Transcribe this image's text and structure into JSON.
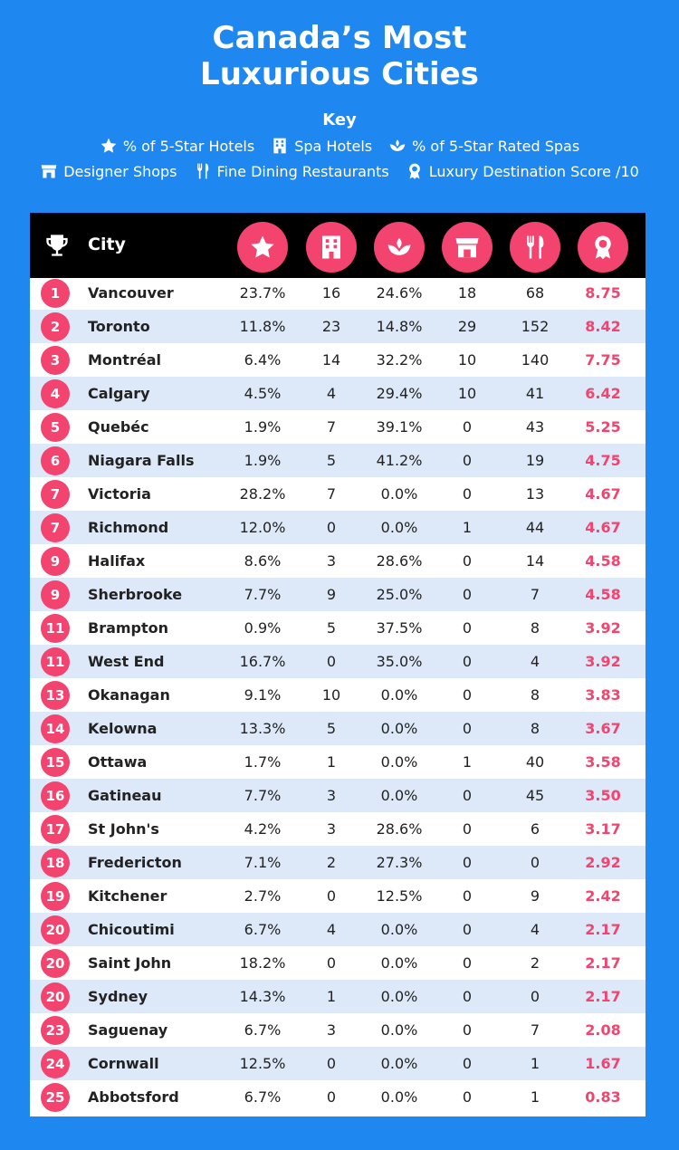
{
  "title_line1": "Canada’s Most",
  "title_line2": "Luxurious Cities",
  "key": {
    "title": "Key",
    "items": [
      {
        "icon": "star-icon",
        "label": "% of 5-Star Hotels"
      },
      {
        "icon": "building-icon",
        "label": "Spa Hotels"
      },
      {
        "icon": "lotus-icon",
        "label": "% of 5-Star Rated Spas"
      },
      {
        "icon": "shop-icon",
        "label": "Designer Shops"
      },
      {
        "icon": "cutlery-icon",
        "label": "Fine Dining Restaurants"
      },
      {
        "icon": "award-icon",
        "label": "Luxury Destination Score /10"
      }
    ]
  },
  "colors": {
    "background": "#1e88f0",
    "accent": "#f2446e",
    "alt_row": "#dde9f8",
    "header": "#000000"
  },
  "header": {
    "city": "City"
  },
  "chart_data": {
    "type": "table",
    "columns": [
      "Rank",
      "City",
      "% of 5-Star Hotels",
      "Spa Hotels",
      "% of 5-Star Rated Spas",
      "Designer Shops",
      "Fine Dining Restaurants",
      "Luxury Destination Score /10"
    ],
    "rows": [
      {
        "rank": "1",
        "city": "Vancouver",
        "hotels": "23.7%",
        "spa_hotels": "16",
        "spas": "24.6%",
        "shops": "18",
        "dining": "68",
        "score": "8.75"
      },
      {
        "rank": "2",
        "city": "Toronto",
        "hotels": "11.8%",
        "spa_hotels": "23",
        "spas": "14.8%",
        "shops": "29",
        "dining": "152",
        "score": "8.42"
      },
      {
        "rank": "3",
        "city": "Montréal",
        "hotels": "6.4%",
        "spa_hotels": "14",
        "spas": "32.2%",
        "shops": "10",
        "dining": "140",
        "score": "7.75"
      },
      {
        "rank": "4",
        "city": "Calgary",
        "hotels": "4.5%",
        "spa_hotels": "4",
        "spas": "29.4%",
        "shops": "10",
        "dining": "41",
        "score": "6.42"
      },
      {
        "rank": "5",
        "city": "Quebéc",
        "hotels": "1.9%",
        "spa_hotels": "7",
        "spas": "39.1%",
        "shops": "0",
        "dining": "43",
        "score": "5.25"
      },
      {
        "rank": "6",
        "city": "Niagara Falls",
        "hotels": "1.9%",
        "spa_hotels": "5",
        "spas": "41.2%",
        "shops": "0",
        "dining": "19",
        "score": "4.75"
      },
      {
        "rank": "7",
        "city": "Victoria",
        "hotels": "28.2%",
        "spa_hotels": "7",
        "spas": "0.0%",
        "shops": "0",
        "dining": "13",
        "score": "4.67"
      },
      {
        "rank": "7",
        "city": "Richmond",
        "hotels": "12.0%",
        "spa_hotels": "0",
        "spas": "0.0%",
        "shops": "1",
        "dining": "44",
        "score": "4.67"
      },
      {
        "rank": "9",
        "city": "Halifax",
        "hotels": "8.6%",
        "spa_hotels": "3",
        "spas": "28.6%",
        "shops": "0",
        "dining": "14",
        "score": "4.58"
      },
      {
        "rank": "9",
        "city": "Sherbrooke",
        "hotels": "7.7%",
        "spa_hotels": "9",
        "spas": "25.0%",
        "shops": "0",
        "dining": "7",
        "score": "4.58"
      },
      {
        "rank": "11",
        "city": "Brampton",
        "hotels": "0.9%",
        "spa_hotels": "5",
        "spas": "37.5%",
        "shops": "0",
        "dining": "8",
        "score": "3.92"
      },
      {
        "rank": "11",
        "city": "West End",
        "hotels": "16.7%",
        "spa_hotels": "0",
        "spas": "35.0%",
        "shops": "0",
        "dining": "4",
        "score": "3.92"
      },
      {
        "rank": "13",
        "city": "Okanagan",
        "hotels": "9.1%",
        "spa_hotels": "10",
        "spas": "0.0%",
        "shops": "0",
        "dining": "8",
        "score": "3.83"
      },
      {
        "rank": "14",
        "city": "Kelowna",
        "hotels": "13.3%",
        "spa_hotels": "5",
        "spas": "0.0%",
        "shops": "0",
        "dining": "8",
        "score": "3.67"
      },
      {
        "rank": "15",
        "city": "Ottawa",
        "hotels": "1.7%",
        "spa_hotels": "1",
        "spas": "0.0%",
        "shops": "1",
        "dining": "40",
        "score": "3.58"
      },
      {
        "rank": "16",
        "city": "Gatineau",
        "hotels": "7.7%",
        "spa_hotels": "3",
        "spas": "0.0%",
        "shops": "0",
        "dining": "45",
        "score": "3.50"
      },
      {
        "rank": "17",
        "city": "St John's",
        "hotels": "4.2%",
        "spa_hotels": "3",
        "spas": "28.6%",
        "shops": "0",
        "dining": "6",
        "score": "3.17"
      },
      {
        "rank": "18",
        "city": "Fredericton",
        "hotels": "7.1%",
        "spa_hotels": "2",
        "spas": "27.3%",
        "shops": "0",
        "dining": "0",
        "score": "2.92"
      },
      {
        "rank": "19",
        "city": "Kitchener",
        "hotels": "2.7%",
        "spa_hotels": "0",
        "spas": "12.5%",
        "shops": "0",
        "dining": "9",
        "score": "2.42"
      },
      {
        "rank": "20",
        "city": "Chicoutimi",
        "hotels": "6.7%",
        "spa_hotels": "4",
        "spas": "0.0%",
        "shops": "0",
        "dining": "4",
        "score": "2.17"
      },
      {
        "rank": "20",
        "city": "Saint John",
        "hotels": "18.2%",
        "spa_hotels": "0",
        "spas": "0.0%",
        "shops": "0",
        "dining": "2",
        "score": "2.17"
      },
      {
        "rank": "20",
        "city": "Sydney",
        "hotels": "14.3%",
        "spa_hotels": "1",
        "spas": "0.0%",
        "shops": "0",
        "dining": "0",
        "score": "2.17"
      },
      {
        "rank": "23",
        "city": "Saguenay",
        "hotels": "6.7%",
        "spa_hotels": "3",
        "spas": "0.0%",
        "shops": "0",
        "dining": "7",
        "score": "2.08"
      },
      {
        "rank": "24",
        "city": "Cornwall",
        "hotels": "12.5%",
        "spa_hotels": "0",
        "spas": "0.0%",
        "shops": "0",
        "dining": "1",
        "score": "1.67"
      },
      {
        "rank": "25",
        "city": "Abbotsford",
        "hotels": "6.7%",
        "spa_hotels": "0",
        "spas": "0.0%",
        "shops": "0",
        "dining": "1",
        "score": "0.83"
      }
    ]
  }
}
